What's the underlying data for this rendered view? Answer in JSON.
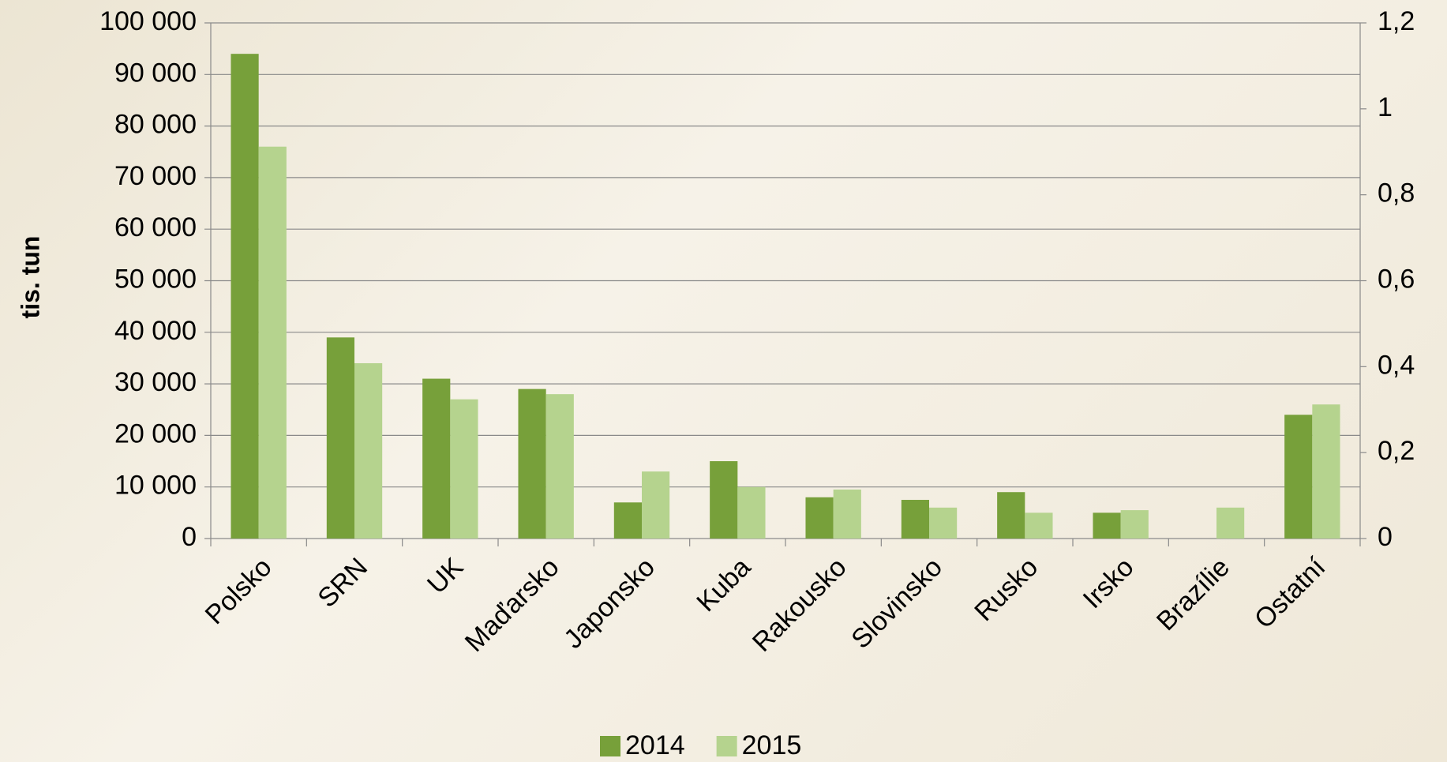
{
  "chart_data": {
    "type": "bar",
    "y_label": "tis. tun",
    "categories": [
      "Polsko",
      "SRN",
      "UK",
      "Maďarsko",
      "Japonsko",
      "Kuba",
      "Rakousko",
      "Slovinsko",
      "Rusko",
      "Irsko",
      "Brazílie",
      "Ostatní"
    ],
    "series": [
      {
        "name": "2014",
        "color": "#77a03a",
        "values": [
          94000,
          39000,
          31000,
          29000,
          7000,
          15000,
          8000,
          7500,
          9000,
          5000,
          null,
          24000
        ]
      },
      {
        "name": "2015",
        "color": "#b5d38e",
        "values": [
          76000,
          34000,
          27000,
          28000,
          13000,
          10000,
          9500,
          6000,
          5000,
          5500,
          6000,
          26000
        ]
      }
    ],
    "ylim": [
      0,
      100000
    ],
    "yticks": [
      0,
      {
        "value": 10000,
        "label": "10 000"
      },
      {
        "value": 20000,
        "label": "20 000"
      },
      {
        "value": 30000,
        "label": "30 000"
      },
      {
        "value": 40000,
        "label": "40 000"
      },
      {
        "value": 50000,
        "label": "50 000"
      },
      {
        "value": 60000,
        "label": "60 000"
      },
      {
        "value": 70000,
        "label": "70 000"
      },
      {
        "value": 80000,
        "label": "80 000"
      },
      {
        "value": 90000,
        "label": "90 000"
      },
      {
        "value": 100000,
        "label": "100 000"
      }
    ],
    "y2lim": [
      0,
      1.2
    ],
    "y2ticks": [
      0,
      {
        "value": 0.2,
        "label": "0,2"
      },
      {
        "value": 0.4,
        "label": "0,4"
      },
      {
        "value": 0.6,
        "label": "0,6"
      },
      {
        "value": 0.8,
        "label": "0,8"
      },
      1,
      {
        "value": 1.2,
        "label": "1,2"
      }
    ],
    "grid": true,
    "legend": "bottom"
  }
}
